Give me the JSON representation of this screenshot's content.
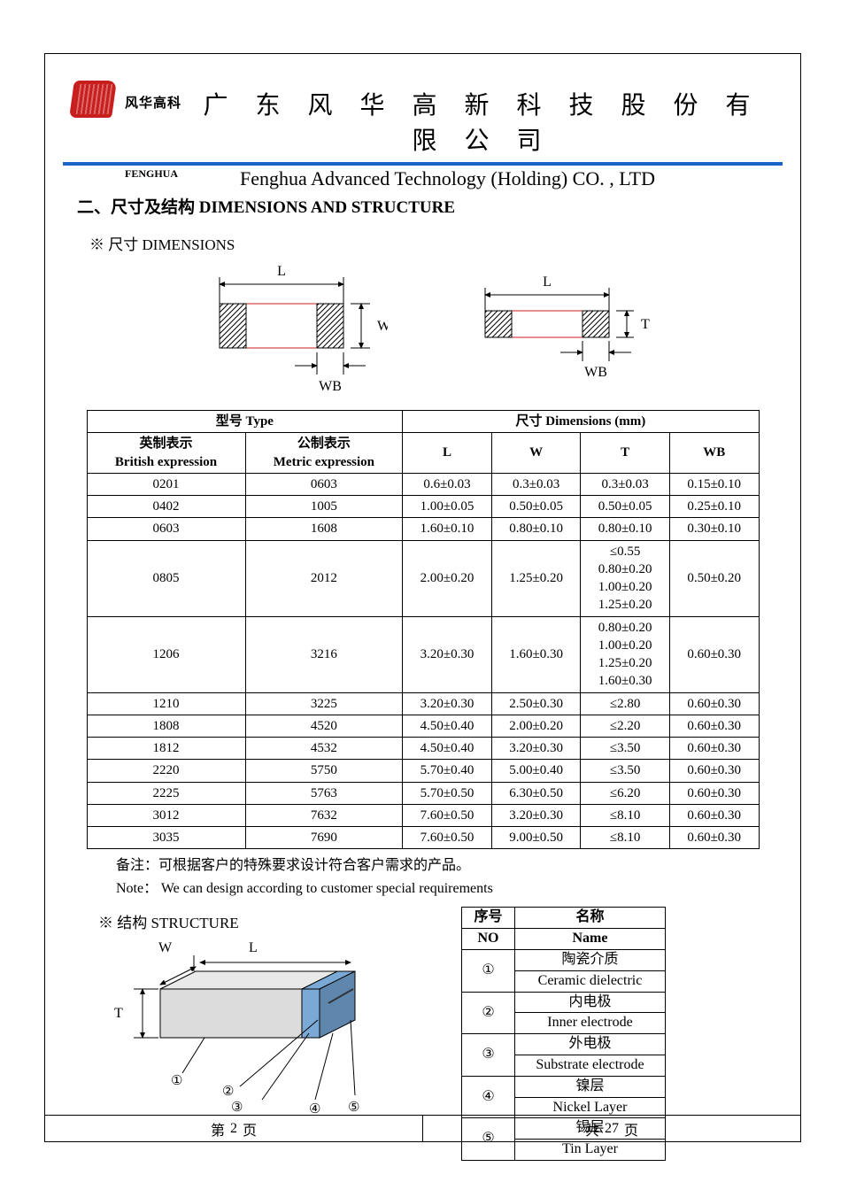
{
  "header": {
    "logo_text_cn": "风华高科",
    "company_cn": "广 东 风 华 高 新 科 技 股 份 有 限 公 司",
    "fenghua_small": "FENGHUA",
    "company_en": "Fenghua Advanced Technology (Holding) CO. , LTD"
  },
  "section": {
    "title": "二、尺寸及结构   DIMENSIONS AND STRUCTURE",
    "dimensions_sub": "※ 尺寸 DIMENSIONS",
    "structure_sub": "※ 结构 STRUCTURE"
  },
  "colors": {
    "rule": "#1a63c9",
    "logo": "#c81e1e",
    "hatch": "#000000",
    "red_line": "#c81e1e",
    "struct_body": "#dcdcdc",
    "struct_end": "#7aa9d6",
    "struct_end_dark": "#5f87ad"
  },
  "diagrams": {
    "top": {
      "L": "L",
      "W": "W",
      "WB": "WB"
    },
    "side": {
      "L": "L",
      "T": "T",
      "WB": "WB"
    },
    "structure": {
      "W": "W",
      "L": "L",
      "T": "T",
      "callouts": [
        "①",
        "②",
        "③",
        "④",
        "⑤"
      ]
    }
  },
  "dim_table": {
    "head1": {
      "type": "型号 Type",
      "dims": "尺寸     Dimensions     (mm)"
    },
    "head2": {
      "brit_cn": "英制表示",
      "brit_en": "British expression",
      "metr_cn": "公制表示",
      "metr_en": "Metric expression",
      "L": "L",
      "W": "W",
      "T": "T",
      "WB": "WB"
    },
    "rows": [
      {
        "b": "0201",
        "m": "0603",
        "L": "0.6±0.03",
        "W": "0.3±0.03",
        "T": "0.3±0.03",
        "WB": "0.15±0.10"
      },
      {
        "b": "0402",
        "m": "1005",
        "L": "1.00±0.05",
        "W": "0.50±0.05",
        "T": "0.50±0.05",
        "WB": "0.25±0.10"
      },
      {
        "b": "0603",
        "m": "1608",
        "L": "1.60±0.10",
        "W": "0.80±0.10",
        "T": "0.80±0.10",
        "WB": "0.30±0.10"
      },
      {
        "b": "0805",
        "m": "2012",
        "L": "2.00±0.20",
        "W": "1.25±0.20",
        "T": "≤0.55\n0.80±0.20\n1.00±0.20\n1.25±0.20",
        "WB": "0.50±0.20"
      },
      {
        "b": "1206",
        "m": "3216",
        "L": "3.20±0.30",
        "W": "1.60±0.30",
        "T": "0.80±0.20\n1.00±0.20\n1.25±0.20\n1.60±0.30",
        "WB": "0.60±0.30"
      },
      {
        "b": "1210",
        "m": "3225",
        "L": "3.20±0.30",
        "W": "2.50±0.30",
        "T": "≤2.80",
        "WB": "0.60±0.30"
      },
      {
        "b": "1808",
        "m": "4520",
        "L": "4.50±0.40",
        "W": "2.00±0.20",
        "T": "≤2.20",
        "WB": "0.60±0.30"
      },
      {
        "b": "1812",
        "m": "4532",
        "L": "4.50±0.40",
        "W": "3.20±0.30",
        "T": "≤3.50",
        "WB": "0.60±0.30"
      },
      {
        "b": "2220",
        "m": "5750",
        "L": "5.70±0.40",
        "W": "5.00±0.40",
        "T": "≤3.50",
        "WB": "0.60±0.30"
      },
      {
        "b": "2225",
        "m": "5763",
        "L": "5.70±0.50",
        "W": "6.30±0.50",
        "T": "≤6.20",
        "WB": "0.60±0.30"
      },
      {
        "b": "3012",
        "m": "7632",
        "L": "7.60±0.50",
        "W": "3.20±0.30",
        "T": "≤8.10",
        "WB": "0.60±0.30"
      },
      {
        "b": "3035",
        "m": "7690",
        "L": "7.60±0.50",
        "W": "9.00±0.50",
        "T": "≤8.10",
        "WB": "0.60±0.30"
      }
    ]
  },
  "notes": {
    "cn": "备注：可根据客户的特殊要求设计符合客户需求的产品。",
    "en": "Note： We can design according to customer special requirements"
  },
  "struct_table": {
    "head": {
      "no_cn": "序号",
      "no_en": "NO",
      "name_cn": "名称",
      "name_en": "Name"
    },
    "rows": [
      {
        "no": "①",
        "cn": "陶瓷介质",
        "en": "Ceramic   dielectric"
      },
      {
        "no": "②",
        "cn": "内电极",
        "en": "Inner   electrode"
      },
      {
        "no": "③",
        "cn": "外电极",
        "en": "Substrate   electrode"
      },
      {
        "no": "④",
        "cn": "镍层",
        "en": "Nickel Layer"
      },
      {
        "no": "⑤",
        "cn": "锡层",
        "en": "Tin Layer"
      }
    ]
  },
  "footer": {
    "left_prefix": "第",
    "page": "2",
    "left_suffix": "页",
    "right_prefix": "共",
    "total": "27",
    "right_suffix": "页"
  }
}
